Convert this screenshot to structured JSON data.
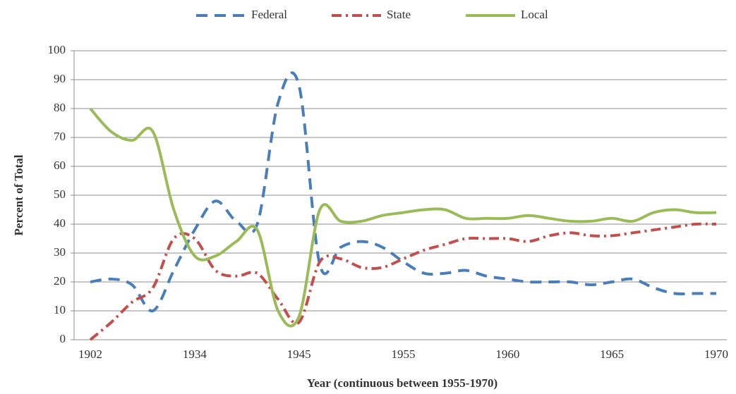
{
  "chart_data": {
    "type": "line",
    "x_label": "Year (continuous between 1955-1970)",
    "y_label": "Percent of Total",
    "categories": [
      "1902",
      null,
      null,
      null,
      null,
      "1934",
      null,
      null,
      null,
      null,
      "1945",
      null,
      null,
      null,
      null,
      "1955",
      null,
      null,
      null,
      null,
      "1960",
      null,
      null,
      null,
      null,
      "1965",
      null,
      null,
      null,
      null,
      "1970"
    ],
    "series": [
      {
        "name": "Federal",
        "color": "#4a7ebb",
        "dash": "16 10",
        "values": [
          20,
          21,
          19,
          10,
          24,
          38,
          48,
          41,
          40,
          82,
          88,
          26,
          32,
          34,
          32,
          27,
          23,
          23,
          24,
          22,
          21,
          20,
          20,
          20,
          19,
          20,
          21,
          18,
          16,
          16,
          16
        ]
      },
      {
        "name": "State",
        "color": "#c0504d",
        "dash": "14 6 3 6",
        "values": [
          0,
          6,
          13,
          18,
          35,
          35,
          24,
          22,
          23,
          14,
          6,
          27,
          28,
          25,
          25,
          28,
          31,
          33,
          35,
          35,
          35,
          34,
          36,
          37,
          36,
          36,
          37,
          38,
          39,
          40,
          40
        ]
      },
      {
        "name": "Local",
        "color": "#9bbb59",
        "dash": "none",
        "values": [
          80,
          72,
          69,
          72,
          45,
          29,
          29,
          34,
          38,
          10,
          8,
          45,
          41,
          41,
          43,
          44,
          45,
          45,
          42,
          42,
          42,
          43,
          42,
          41,
          41,
          42,
          41,
          44,
          45,
          44,
          44
        ]
      }
    ],
    "ylim": [
      0,
      100
    ],
    "yticks": [
      0,
      10,
      20,
      30,
      40,
      50,
      60,
      70,
      80,
      90,
      100
    ],
    "grid": true,
    "legend": "top"
  }
}
